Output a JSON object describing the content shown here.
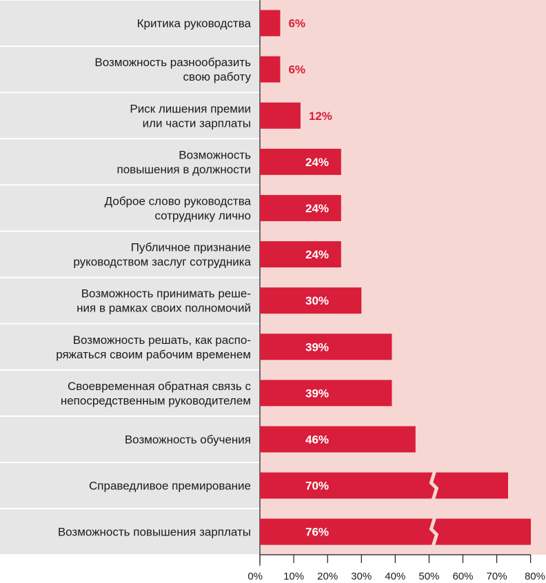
{
  "chart_data": {
    "type": "bar",
    "orientation": "horizontal",
    "categories": [
      [
        "Критика руководства"
      ],
      [
        "Возможность разнообразить",
        "свою работу"
      ],
      [
        "Риск лишения премии",
        "или части зарплаты"
      ],
      [
        "Возможность",
        "повышения в должности"
      ],
      [
        "Доброе слово руководства",
        "сотруднику лично"
      ],
      [
        "Публичное признание",
        "руководством заслуг сотрудника"
      ],
      [
        "Возможность принимать реше-",
        "ния в рамках своих полномочий"
      ],
      [
        "Возможность решать, как распо-",
        "ряжаться своим рабочим временем"
      ],
      [
        "Своевременная обратная связь с",
        "непосредственным руководителем"
      ],
      [
        "Возможность обучения"
      ],
      [
        "Справедливое премирование"
      ],
      [
        "Возможность повышения зарплаты"
      ]
    ],
    "values": [
      6,
      6,
      12,
      24,
      24,
      24,
      30,
      39,
      39,
      46,
      70,
      76
    ],
    "value_labels": [
      "6%",
      "6%",
      "12%",
      "24%",
      "24%",
      "24%",
      "30%",
      "39%",
      "39%",
      "46%",
      "70%",
      "76%"
    ],
    "axis_break": {
      "display_from": 50,
      "applies_to": [
        10,
        11
      ]
    },
    "xticks": [
      "0%",
      "10%",
      "20%",
      "30%",
      "40%",
      "50%",
      "60%",
      "70%",
      "80%"
    ],
    "xlim": [
      0,
      80
    ],
    "colors": {
      "bar": "#d81e3a",
      "plot_background": "#f6d7d3",
      "label_background": "#e6e6e6",
      "value_outside": "#d81e3a",
      "value_inside": "#ffffff"
    }
  }
}
